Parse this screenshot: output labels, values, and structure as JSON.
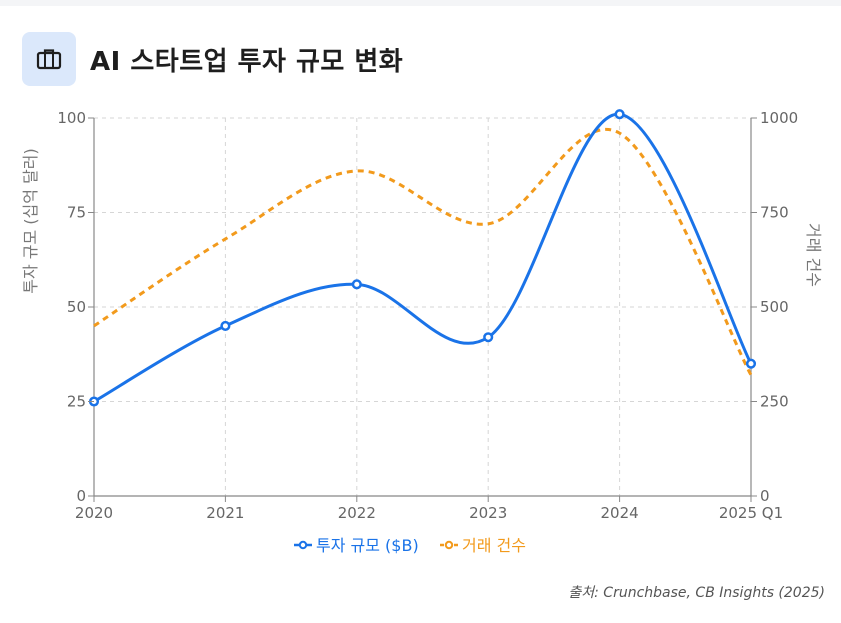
{
  "header": {
    "title": "AI 스타트업 투자 규모 변화",
    "icon": "briefcase-icon",
    "icon_bg": "#dbe8fb"
  },
  "chart_data": {
    "type": "line",
    "categories": [
      "2020",
      "2021",
      "2022",
      "2023",
      "2024",
      "2025 Q1"
    ],
    "series": [
      {
        "name": "투자 규모 ($B)",
        "axis": "left",
        "values": [
          25,
          45,
          56,
          42,
          101,
          35
        ],
        "color": "#1a73e8",
        "style": "solid",
        "smooth": true
      },
      {
        "name": "거래 건수",
        "axis": "right",
        "values": [
          450,
          680,
          860,
          720,
          960,
          320
        ],
        "color": "#f29a1c",
        "style": "dashed",
        "smooth": true
      }
    ],
    "ylabel_left": "투자 규모 (십억 달러)",
    "ylabel_right": "거래 건수",
    "ylim_left": [
      0,
      100
    ],
    "yticks_left": [
      "0",
      "25",
      "50",
      "75",
      "100"
    ],
    "ylim_right": [
      0,
      1000
    ],
    "yticks_right": [
      "0",
      "250",
      "500",
      "750",
      "1000"
    ],
    "grid": true,
    "legend_position": "bottom"
  },
  "source": "출처: Crunchbase, CB Insights (2025)"
}
